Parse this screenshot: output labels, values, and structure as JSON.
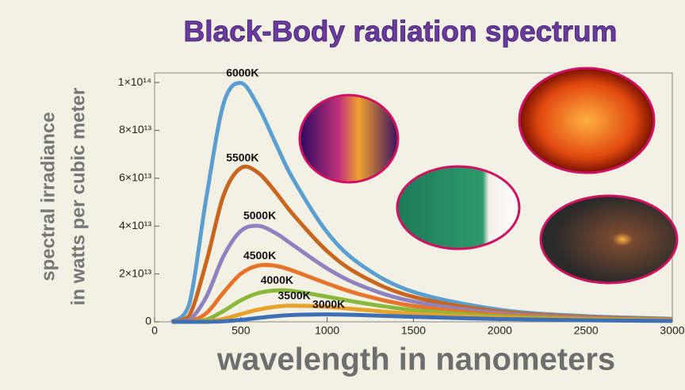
{
  "chart_data": {
    "type": "line",
    "title": "Black-Body radiation spectrum",
    "x_label": "wavelength in nanometers",
    "y_label": [
      "spectral irradiance",
      "in watts per cubic meter"
    ],
    "x": [
      100,
      200,
      300,
      400,
      500,
      600,
      700,
      800,
      1000,
      1200,
      1500,
      2000,
      2500,
      3000
    ],
    "series": [
      {
        "name": "6000K",
        "color": "#5b9fd0",
        "values": [
          0,
          7260000000000.0,
          52000000000000.0,
          91200000000000.0,
          99800000000000.0,
          90100000000000.0,
          74800000000000.0,
          60000000000000.0,
          37400000000000.0,
          23600000000000.0,
          12500000000000.0,
          5050000000000.0,
          2380000000000.0,
          1260000000000.0
        ]
      },
      {
        "name": "5500K",
        "color": "#c8661f",
        "values": [
          0,
          2440000000000.0,
          25100000000000.0,
          52900000000000.0,
          64300000000000.0,
          62300000000000.0,
          54300000000000.0,
          45100000000000.0,
          29500000000000.0,
          19200000000000.0,
          10400000000000.0,
          4330000000000.0,
          2070000000000.0,
          1110000000000.0
        ]
      },
      {
        "name": "5000K",
        "color": "#8f82c0",
        "values": [
          0,
          657000000000.0,
          10500000000000.0,
          27500000000000.0,
          38000000000000.0,
          40100000000000.0,
          37100000000000.0,
          32200000000000.0,
          22300000000000.0,
          15000000000000.0,
          8480000000000.0,
          3630000000000.0,
          1770000000000.0,
          957000000000.0
        ]
      },
      {
        "name": "4500K",
        "color": "#e8742a",
        "values": [
          0,
          133000000000.0,
          3610000000000.0,
          12300000000000.0,
          20100000000000.0,
          23500000000000.0,
          23400000000000.0,
          21400000000000.0,
          16000000000000.0,
          11300000000000.0,
          6640000000000.0,
          2960000000000.0,
          1480000000000.0,
          809000000000.0
        ]
      },
      {
        "name": "4000K",
        "color": "#8ab83a",
        "values": [
          0,
          18000000000.0,
          956000000000.0,
          4540000000000.0,
          8990000000000.0,
          12000000000000.0,
          13100000000000.0,
          12900000000000.0,
          10500000000000.0,
          7900000000000.0,
          4930000000000.0,
          2320000000000.0,
          1190000000000.0,
          665000000000.0
        ]
      },
      {
        "name": "3500K",
        "color": "#e8a12b",
        "values": [
          0,
          2000000000.0,
          173000000000.0,
          1260000000000.0,
          3220000000000.0,
          5090000000000.0,
          6280000000000.0,
          6740000000000.0,
          6240000000000.0,
          5060000000000.0,
          3400000000000.0,
          1720000000000.0,
          917000000000.0,
          525000000000.0
        ]
      },
      {
        "name": "3000K",
        "color": "#3d6fb5",
        "values": [
          0,
          0,
          17500000000.0,
          227000000000.0,
          817000000000.0,
          1620000000000.0,
          2360000000000.0,
          2850000000000.0,
          3120000000000.0,
          2820000000000.0,
          2100000000000.0,
          1170000000000.0,
          660000000000.0,
          390000000000.0
        ]
      }
    ],
    "xlim": [
      0,
      3000
    ],
    "xticks": [
      0,
      500,
      1000,
      1500,
      2000,
      2500,
      3000
    ],
    "ylim": [
      0,
      104000000000000.0
    ],
    "yticks": [
      0,
      {
        "value": 20000000000000.0,
        "label": "2×10¹³"
      },
      {
        "value": 40000000000000.0,
        "label": "4×10¹³"
      },
      {
        "value": 60000000000000.0,
        "label": "6×10¹³"
      },
      {
        "value": 80000000000000.0,
        "label": "8×10¹³"
      },
      {
        "value": 100000000000000.0,
        "label": "1×10¹⁴"
      }
    ]
  }
}
